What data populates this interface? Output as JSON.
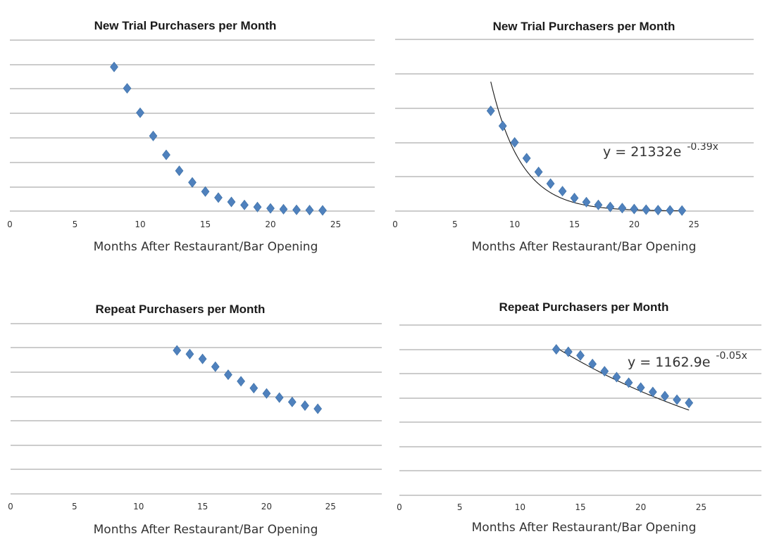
{
  "chart_data": [
    {
      "type": "scatter",
      "title": "New Trial Purchasers per Month",
      "xlabel": "Months After Restaurant/Bar Opening",
      "ylabel": "",
      "xlim": [
        0,
        28
      ],
      "ylim": [
        0,
        1400
      ],
      "x_ticks": [
        0,
        5,
        10,
        15,
        20,
        25
      ],
      "y_tick_labels_shown": false,
      "grid": true,
      "trendline": null,
      "series": [
        {
          "x": [
            8,
            9,
            10,
            11,
            12,
            13,
            14,
            15,
            16,
            17,
            18,
            19,
            20,
            21,
            22,
            23,
            24
          ],
          "y": [
            1180,
            1005,
            805,
            615,
            460,
            330,
            235,
            160,
            110,
            75,
            50,
            33,
            22,
            15,
            10,
            8,
            6
          ]
        }
      ],
      "colors": {
        "points": "#4f81bd",
        "grid": "#9a9a9a"
      }
    },
    {
      "type": "scatter",
      "title": "New Trial Purchasers per Month",
      "xlabel": "Months After Restaurant/Bar Opening",
      "ylabel": "",
      "xlim": [
        0,
        30
      ],
      "ylim": [
        0,
        1250
      ],
      "x_ticks": [
        0,
        5,
        10,
        15,
        20,
        25
      ],
      "y_tick_labels_shown": false,
      "grid": true,
      "trendline": {
        "kind": "exponential",
        "a": 21332,
        "b": -0.39,
        "x_range": [
          8,
          24
        ],
        "equation": "y = 21332e",
        "exponent": "-0.39x"
      },
      "series": [
        {
          "x": [
            8,
            9,
            10,
            11,
            12,
            13,
            14,
            15,
            16,
            17,
            18,
            19,
            20,
            21,
            22,
            23,
            24
          ],
          "y": [
            730,
            620,
            500,
            385,
            285,
            200,
            145,
            95,
            65,
            45,
            30,
            22,
            15,
            10,
            7,
            5,
            4
          ]
        }
      ],
      "colors": {
        "points": "#4f81bd",
        "grid": "#9a9a9a",
        "trendline": "#1a1a1a"
      }
    },
    {
      "type": "scatter",
      "title": "Repeat Purchasers per Month",
      "xlabel": "Months After Restaurant/Bar Opening",
      "ylabel": "",
      "xlim": [
        0,
        29
      ],
      "ylim": [
        0,
        700
      ],
      "x_ticks": [
        0,
        5,
        10,
        15,
        20,
        25
      ],
      "y_tick_labels_shown": false,
      "grid": true,
      "trendline": null,
      "series": [
        {
          "x": [
            13,
            14,
            15,
            16,
            17,
            18,
            19,
            20,
            21,
            22,
            23,
            24
          ],
          "y": [
            590,
            575,
            555,
            523,
            490,
            463,
            435,
            413,
            396,
            378,
            363,
            350
          ]
        }
      ],
      "colors": {
        "points": "#4f81bd",
        "grid": "#9a9a9a"
      }
    },
    {
      "type": "scatter",
      "title": "Repeat Purchasers per Month",
      "xlabel": "Months After Restaurant/Bar Opening",
      "ylabel": "",
      "xlim": [
        0,
        30
      ],
      "ylim": [
        0,
        700
      ],
      "x_ticks": [
        0,
        5,
        10,
        15,
        20,
        25
      ],
      "y_tick_labels_shown": false,
      "grid": true,
      "trendline": {
        "kind": "exponential",
        "a": 1162.9,
        "b": -0.05,
        "x_range": [
          13,
          24
        ],
        "equation": "y = 1162.9e",
        "exponent": "-0.05x"
      },
      "series": [
        {
          "x": [
            13,
            14,
            15,
            16,
            17,
            18,
            19,
            20,
            21,
            22,
            23,
            24
          ],
          "y": [
            600,
            590,
            575,
            540,
            510,
            486,
            463,
            443,
            425,
            408,
            393,
            380
          ]
        }
      ],
      "colors": {
        "points": "#4f81bd",
        "grid": "#9a9a9a",
        "trendline": "#1a1a1a"
      }
    }
  ]
}
